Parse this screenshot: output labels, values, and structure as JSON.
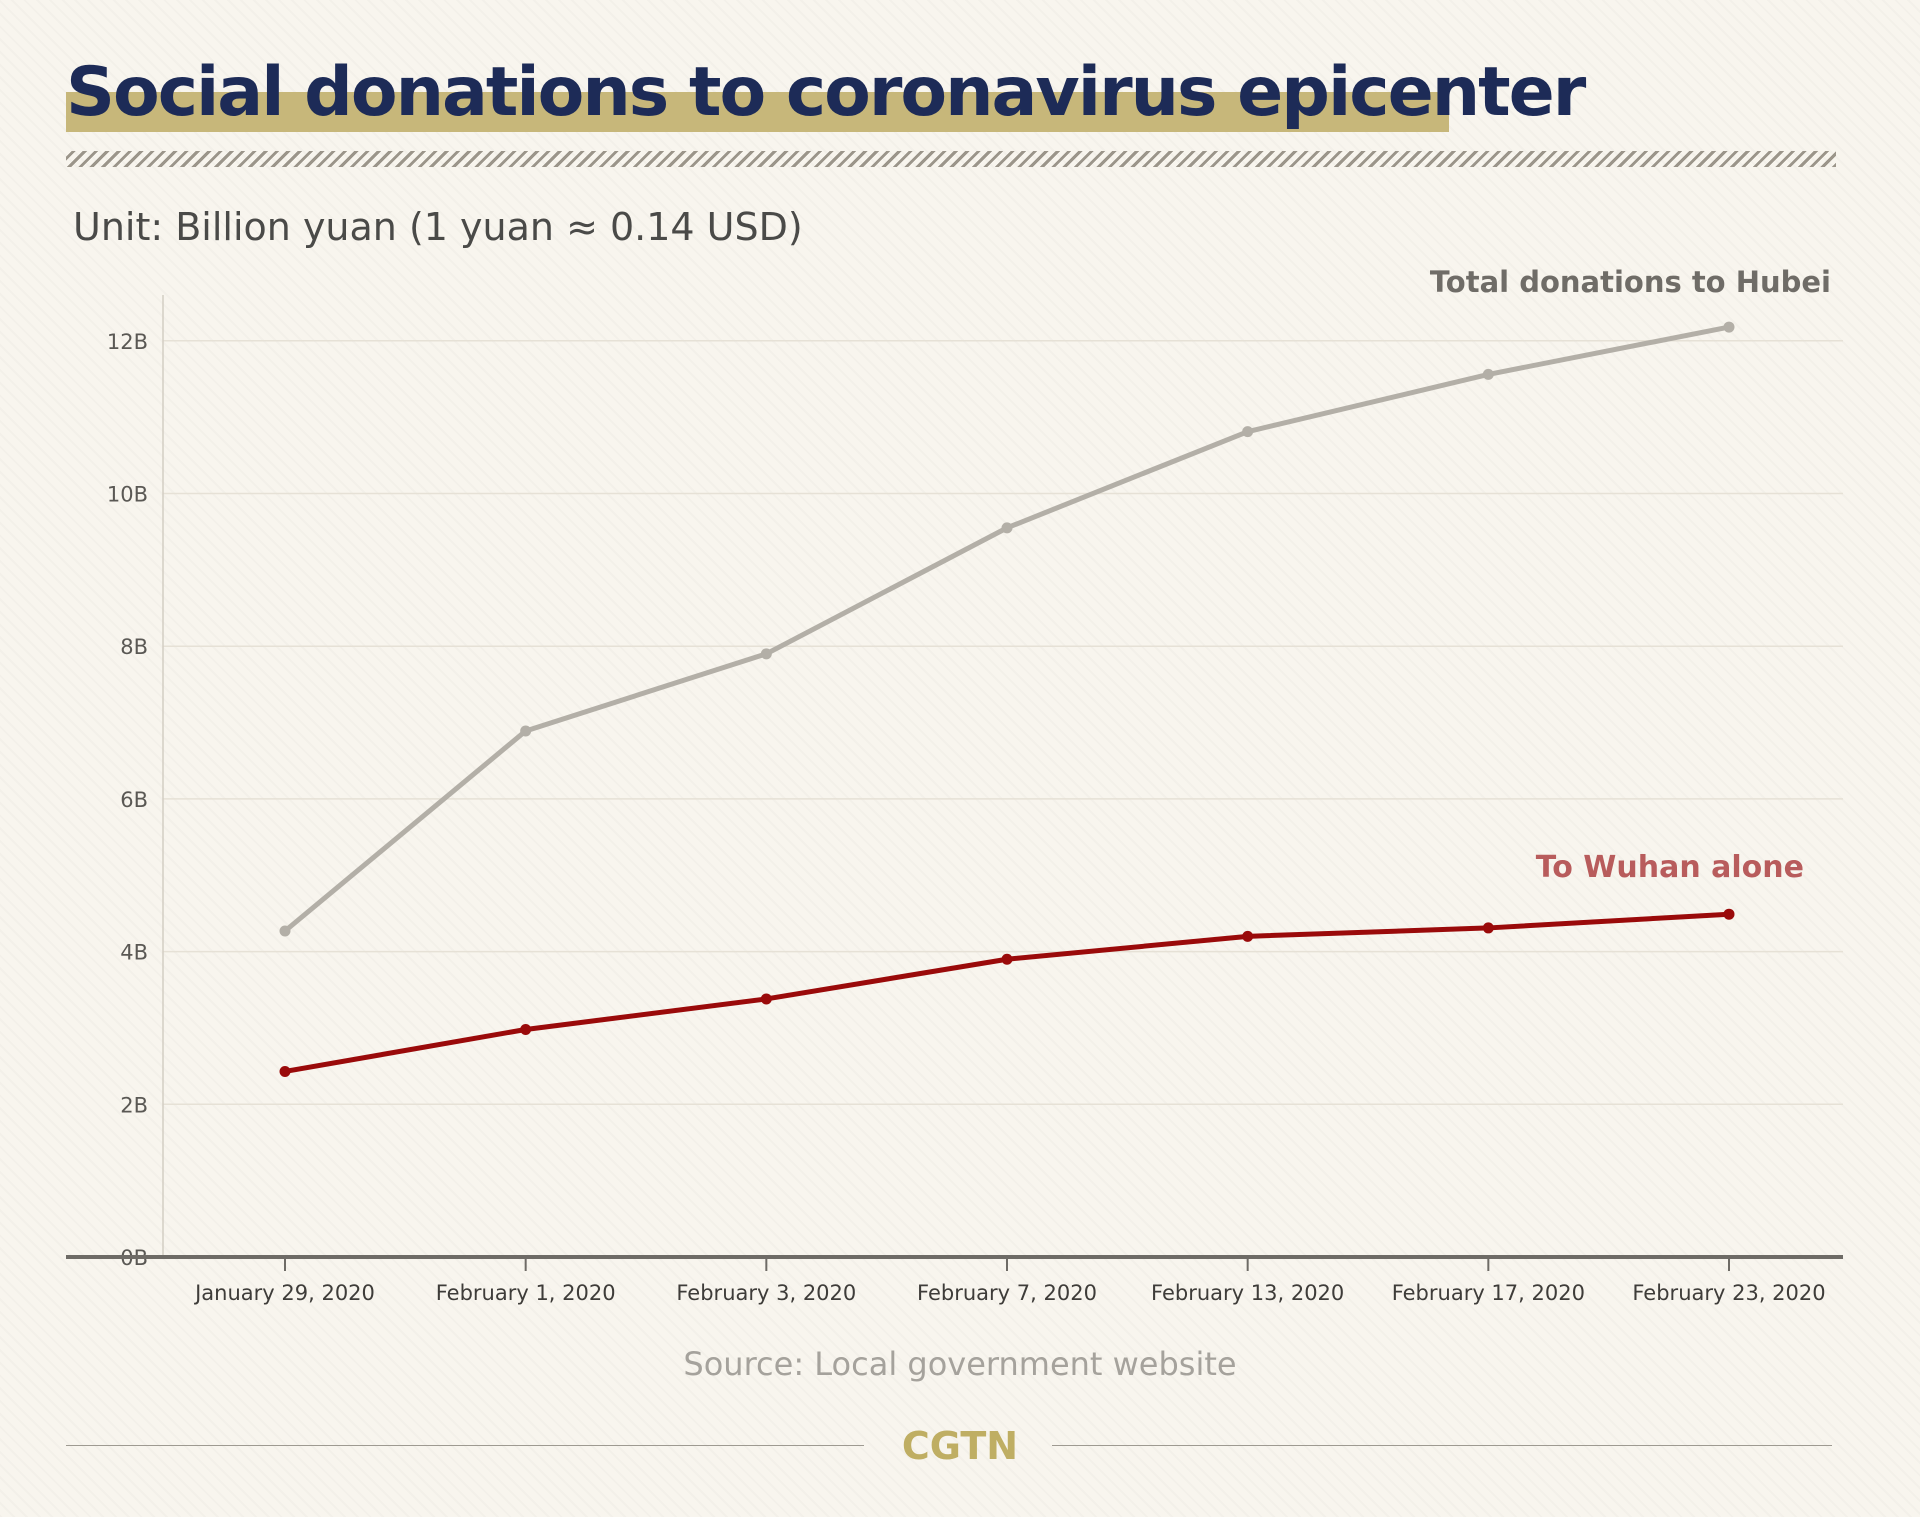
{
  "header": {
    "title": "Social donations to coronavirus epicenter",
    "unit": "Unit: Billion yuan (1 yuan ≈ 0.14 USD)"
  },
  "footer": {
    "source": "Source: Local government website",
    "brand": "CGTN"
  },
  "colors": {
    "title": "#1d2b57",
    "title_highlight": "#c7b77a",
    "total_series": "#b3afa7",
    "wuhan_series": "#9a0a0a",
    "wuhan_label": "#b85c5c",
    "brand": "#bfae63"
  },
  "chart_data": {
    "type": "line",
    "x": [
      "January 29, 2020",
      "February 1, 2020",
      "February 3, 2020",
      "February 7, 2020",
      "February 13, 2020",
      "February 17, 2020",
      "February 23, 2020"
    ],
    "y_ticks": [
      "0B",
      "2B",
      "4B",
      "6B",
      "8B",
      "10B",
      "12B"
    ],
    "y_tick_values": [
      0,
      2,
      4,
      6,
      8,
      10,
      12
    ],
    "ylim": [
      0,
      12.6
    ],
    "grid": "horizontal",
    "series": [
      {
        "name": "Total donations to Hubei",
        "values": [
          4.27,
          6.89,
          7.9,
          9.55,
          10.81,
          11.56,
          12.18
        ]
      },
      {
        "name": "To Wuhan alone",
        "values": [
          2.43,
          2.98,
          3.38,
          3.9,
          4.2,
          4.31,
          4.49
        ]
      }
    ]
  }
}
